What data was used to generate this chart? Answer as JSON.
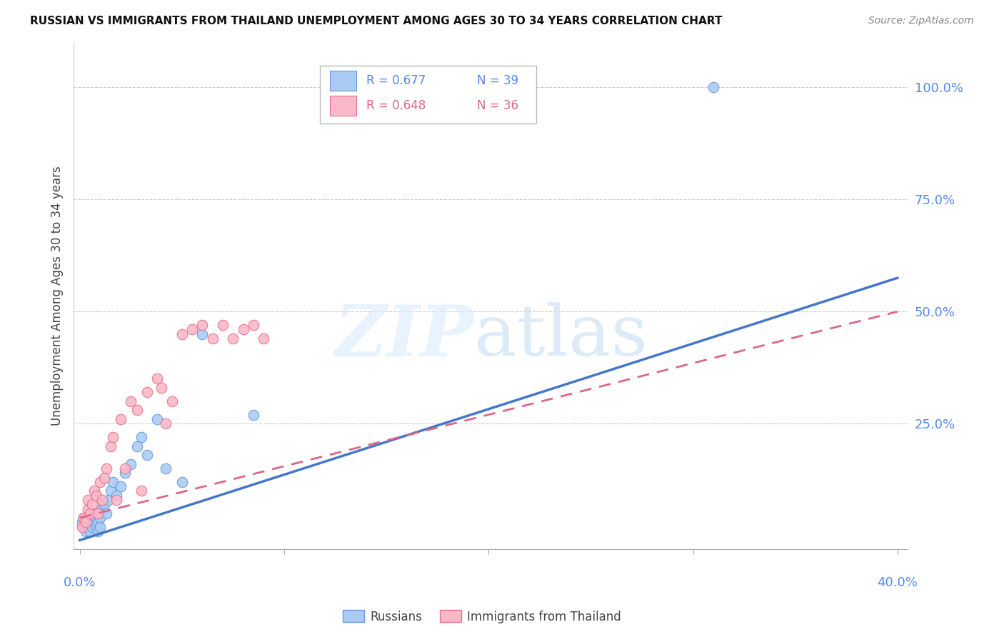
{
  "title": "RUSSIAN VS IMMIGRANTS FROM THAILAND UNEMPLOYMENT AMONG AGES 30 TO 34 YEARS CORRELATION CHART",
  "source": "Source: ZipAtlas.com",
  "ylabel": "Unemployment Among Ages 30 to 34 years",
  "right_ytick_labels": [
    "100.0%",
    "75.0%",
    "50.0%",
    "25.0%"
  ],
  "right_ytick_values": [
    1.0,
    0.75,
    0.5,
    0.25
  ],
  "legend_r1_blue": "R = 0.677",
  "legend_n1_blue": "N = 39",
  "legend_r2_pink": "R = 0.648",
  "legend_n2_pink": "N = 36",
  "legend_label1": "Russians",
  "legend_label2": "Immigrants from Thailand",
  "russian_fill_color": "#aaccf4",
  "russian_edge_color": "#6699dd",
  "thailand_fill_color": "#f9b8c8",
  "thailand_edge_color": "#e8708a",
  "trendline_russian_color": "#4477cc",
  "trendline_thailand_color": "#dd6688",
  "russian_scatter_x": [
    0.001,
    0.002,
    0.002,
    0.003,
    0.003,
    0.004,
    0.004,
    0.005,
    0.005,
    0.005,
    0.006,
    0.006,
    0.007,
    0.007,
    0.008,
    0.008,
    0.009,
    0.009,
    0.01,
    0.01,
    0.011,
    0.012,
    0.013,
    0.014,
    0.015,
    0.016,
    0.018,
    0.02,
    0.022,
    0.025,
    0.028,
    0.03,
    0.033,
    0.038,
    0.042,
    0.05,
    0.06,
    0.085,
    0.31
  ],
  "russian_scatter_y": [
    0.03,
    0.02,
    0.04,
    0.01,
    0.03,
    0.02,
    0.04,
    0.01,
    0.03,
    0.05,
    0.02,
    0.04,
    0.03,
    0.05,
    0.02,
    0.04,
    0.03,
    0.01,
    0.04,
    0.02,
    0.06,
    0.07,
    0.05,
    0.08,
    0.1,
    0.12,
    0.09,
    0.11,
    0.14,
    0.16,
    0.2,
    0.22,
    0.18,
    0.26,
    0.15,
    0.12,
    0.45,
    0.27,
    1.0
  ],
  "thailand_scatter_x": [
    0.001,
    0.002,
    0.003,
    0.004,
    0.004,
    0.005,
    0.006,
    0.007,
    0.008,
    0.009,
    0.01,
    0.011,
    0.012,
    0.013,
    0.015,
    0.016,
    0.018,
    0.02,
    0.022,
    0.025,
    0.028,
    0.03,
    0.033,
    0.038,
    0.04,
    0.042,
    0.045,
    0.05,
    0.055,
    0.06,
    0.065,
    0.07,
    0.075,
    0.08,
    0.085,
    0.09
  ],
  "thailand_scatter_y": [
    0.02,
    0.04,
    0.03,
    0.06,
    0.08,
    0.05,
    0.07,
    0.1,
    0.09,
    0.05,
    0.12,
    0.08,
    0.13,
    0.15,
    0.2,
    0.22,
    0.08,
    0.26,
    0.15,
    0.3,
    0.28,
    0.1,
    0.32,
    0.35,
    0.33,
    0.25,
    0.3,
    0.45,
    0.46,
    0.47,
    0.44,
    0.47,
    0.44,
    0.46,
    0.47,
    0.44
  ],
  "trendline_russian_x0": 0.0,
  "trendline_russian_x1": 0.4,
  "trendline_russian_y0": -0.01,
  "trendline_russian_y1": 0.575,
  "trendline_thailand_x0": 0.0,
  "trendline_thailand_x1": 0.4,
  "trendline_thailand_y0": 0.04,
  "trendline_thailand_y1": 0.5,
  "xmin": -0.003,
  "xmax": 0.405,
  "ymin": -0.03,
  "ymax": 1.1,
  "grid_color": "#cccccc",
  "background_color": "#ffffff",
  "blue_color": "#5588ee",
  "pink_color": "#dd6688"
}
